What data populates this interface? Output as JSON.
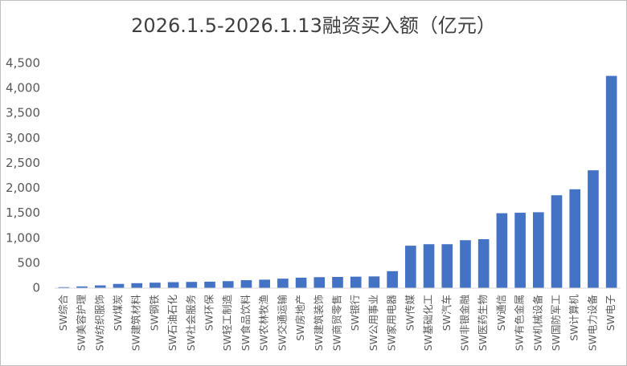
{
  "chart_data": {
    "type": "bar",
    "title": "2026.1.5-2026.1.13融资买入额（亿元）",
    "categories": [
      "SW综合",
      "SW美容护理",
      "SW纺织服饰",
      "SW煤炭",
      "SW建筑材料",
      "SW钢铁",
      "SW石油石化",
      "SW社会服务",
      "SW环保",
      "SW轻工制造",
      "SW食品饮料",
      "SW农林牧渔",
      "SW交通运输",
      "SW房地产",
      "SW建筑装饰",
      "SW商贸零售",
      "SW银行",
      "SW公用事业",
      "SW家用电器",
      "SW传媒",
      "SW基础化工",
      "SW汽车",
      "SW非银金融",
      "SW医药生物",
      "SW通信",
      "SW有色金属",
      "SW机械设备",
      "SW国防军工",
      "SW计算机",
      "SW电力设备",
      "SW电子"
    ],
    "values": [
      20,
      35,
      55,
      85,
      100,
      110,
      120,
      125,
      130,
      140,
      160,
      170,
      190,
      210,
      220,
      225,
      230,
      235,
      340,
      850,
      880,
      880,
      960,
      980,
      1500,
      1510,
      1520,
      1860,
      1980,
      2360,
      4250
    ],
    "color": "#4472c4",
    "ylim": [
      0,
      4500
    ],
    "yticks": [
      0,
      500,
      {
        "value": 1000,
        "label": "1,000"
      },
      {
        "value": 1500,
        "label": "1,500"
      },
      {
        "value": 2000,
        "label": "2,000"
      },
      {
        "value": 2500,
        "label": "2,500"
      },
      {
        "value": 3000,
        "label": "3,000"
      },
      {
        "value": 3500,
        "label": "3,500"
      },
      {
        "value": 4000,
        "label": "4,000"
      },
      {
        "value": 4500,
        "label": "4,500"
      }
    ],
    "grid": false
  }
}
